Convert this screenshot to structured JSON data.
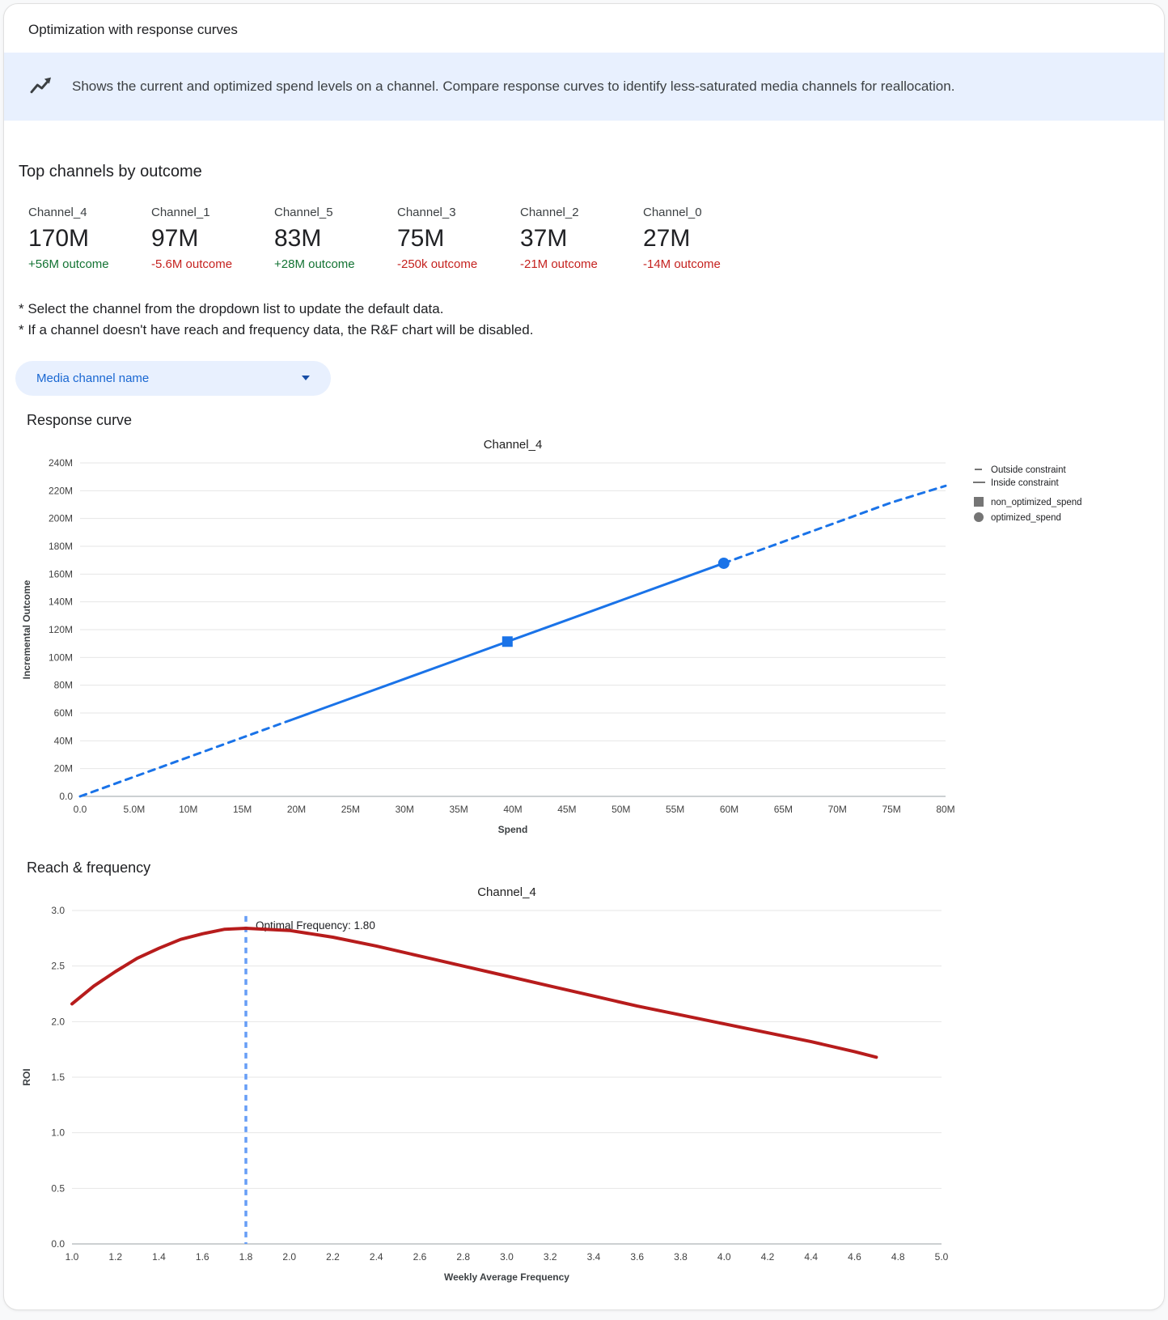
{
  "header": {
    "title": "Optimization with response curves"
  },
  "banner": {
    "icon": "trend-line-icon",
    "text": "Shows the current and optimized spend levels on a channel. Compare response curves to identify less-saturated media channels for reallocation."
  },
  "top_channels": {
    "heading": "Top channels by outcome",
    "channels": [
      {
        "name": "Channel_4",
        "value": "170M",
        "outcome": "+56M outcome",
        "direction": "positive"
      },
      {
        "name": "Channel_1",
        "value": "97M",
        "outcome": "-5.6M outcome",
        "direction": "negative"
      },
      {
        "name": "Channel_5",
        "value": "83M",
        "outcome": "+28M outcome",
        "direction": "positive"
      },
      {
        "name": "Channel_3",
        "value": "75M",
        "outcome": "-250k outcome",
        "direction": "negative"
      },
      {
        "name": "Channel_2",
        "value": "37M",
        "outcome": "-21M outcome",
        "direction": "negative"
      },
      {
        "name": "Channel_0",
        "value": "27M",
        "outcome": "-14M outcome",
        "direction": "negative"
      }
    ],
    "positive_color": "#137333",
    "negative_color": "#c5221f"
  },
  "notes": [
    "* Select the channel from the dropdown list to update the default data.",
    "* If a channel doesn't have reach and frequency data, the R&F chart will be disabled."
  ],
  "dropdown": {
    "label": "Media channel name"
  },
  "sections": {
    "response_curve": "Response curve",
    "reach_frequency": "Reach & frequency"
  },
  "chart_data": [
    {
      "type": "line",
      "title": "Channel_4",
      "xlabel": "Spend",
      "ylabel": "Incremental Outcome",
      "xlim": [
        0,
        80
      ],
      "ylim": [
        0,
        240
      ],
      "x_ticks": [
        0,
        5,
        10,
        15,
        20,
        25,
        30,
        35,
        40,
        45,
        50,
        55,
        60,
        65,
        70,
        75,
        80
      ],
      "x_tick_labels": [
        "0.0",
        "5.0M",
        "10M",
        "15M",
        "20M",
        "25M",
        "30M",
        "35M",
        "40M",
        "45M",
        "50M",
        "55M",
        "60M",
        "65M",
        "70M",
        "75M",
        "80M"
      ],
      "y_ticks": [
        0,
        20,
        40,
        60,
        80,
        100,
        120,
        140,
        160,
        180,
        200,
        220,
        240
      ],
      "y_tick_labels": [
        "0.0",
        "20M",
        "40M",
        "60M",
        "80M",
        "100M",
        "120M",
        "140M",
        "160M",
        "180M",
        "200M",
        "220M",
        "240M"
      ],
      "line_color": "#1a73e8",
      "line_width": 3,
      "grid": true,
      "series": [
        {
          "name": "response_curve",
          "solid_range": [
            19.4,
            59.5
          ],
          "points": [
            [
              0,
              0
            ],
            [
              5,
              14.1
            ],
            [
              10,
              28.2
            ],
            [
              15,
              42.3
            ],
            [
              19.4,
              54.7
            ],
            [
              25,
              70.5
            ],
            [
              30,
              84.6
            ],
            [
              35,
              98.7
            ],
            [
              39.5,
              111.4
            ],
            [
              45,
              126.9
            ],
            [
              50,
              141.0
            ],
            [
              55,
              155.1
            ],
            [
              59.5,
              167.8
            ],
            [
              65,
              183.3
            ],
            [
              70,
              197.4
            ],
            [
              75,
              211.5
            ],
            [
              80,
              223.5
            ]
          ]
        }
      ],
      "markers": [
        {
          "shape": "square",
          "x": 39.5,
          "y": 111.4,
          "label": "non_optimized_spend"
        },
        {
          "shape": "circle",
          "x": 59.5,
          "y": 167.8,
          "label": "optimized_spend"
        }
      ],
      "legend": [
        {
          "label": "Outside constraint",
          "swatch": "dash"
        },
        {
          "label": "Inside constraint",
          "swatch": "line"
        },
        {
          "label": "non_optimized_spend",
          "swatch": "square"
        },
        {
          "label": "optimized_spend",
          "swatch": "circle"
        }
      ],
      "legend_position": "right"
    },
    {
      "type": "line",
      "title": "Channel_4",
      "xlabel": "Weekly Average Frequency",
      "ylabel": "ROI",
      "xlim": [
        1.0,
        5.0
      ],
      "ylim": [
        0,
        3.0
      ],
      "x_ticks": [
        1.0,
        1.2,
        1.4,
        1.6,
        1.8,
        2.0,
        2.2,
        2.4,
        2.6,
        2.8,
        3.0,
        3.2,
        3.4,
        3.6,
        3.8,
        4.0,
        4.2,
        4.4,
        4.6,
        4.8,
        5.0
      ],
      "x_tick_labels": [
        "1.0",
        "1.2",
        "1.4",
        "1.6",
        "1.8",
        "2.0",
        "2.2",
        "2.4",
        "2.6",
        "2.8",
        "3.0",
        "3.2",
        "3.4",
        "3.6",
        "3.8",
        "4.0",
        "4.2",
        "4.4",
        "4.6",
        "4.8",
        "5.0"
      ],
      "y_ticks": [
        0,
        0.5,
        1.0,
        1.5,
        2.0,
        2.5,
        3.0
      ],
      "y_tick_labels": [
        "0.0",
        "0.5",
        "1.0",
        "1.5",
        "2.0",
        "2.5",
        "3.0"
      ],
      "line_color": "#b71c1c",
      "line_width": 4,
      "grid": true,
      "vline_x": 1.8,
      "vline_top": 2.95,
      "vline_color": "#669df6",
      "annotation": "Optimal Frequency: 1.80",
      "series": [
        {
          "name": "roi_by_frequency",
          "points": [
            [
              1.0,
              2.16
            ],
            [
              1.1,
              2.32
            ],
            [
              1.2,
              2.45
            ],
            [
              1.3,
              2.57
            ],
            [
              1.4,
              2.66
            ],
            [
              1.5,
              2.74
            ],
            [
              1.6,
              2.79
            ],
            [
              1.7,
              2.83
            ],
            [
              1.8,
              2.84
            ],
            [
              2.0,
              2.82
            ],
            [
              2.2,
              2.76
            ],
            [
              2.4,
              2.68
            ],
            [
              2.6,
              2.59
            ],
            [
              2.8,
              2.5
            ],
            [
              3.0,
              2.41
            ],
            [
              3.2,
              2.32
            ],
            [
              3.4,
              2.23
            ],
            [
              3.6,
              2.14
            ],
            [
              3.8,
              2.06
            ],
            [
              4.0,
              1.98
            ],
            [
              4.2,
              1.9
            ],
            [
              4.4,
              1.82
            ],
            [
              4.6,
              1.73
            ],
            [
              4.7,
              1.68
            ]
          ]
        }
      ]
    }
  ]
}
